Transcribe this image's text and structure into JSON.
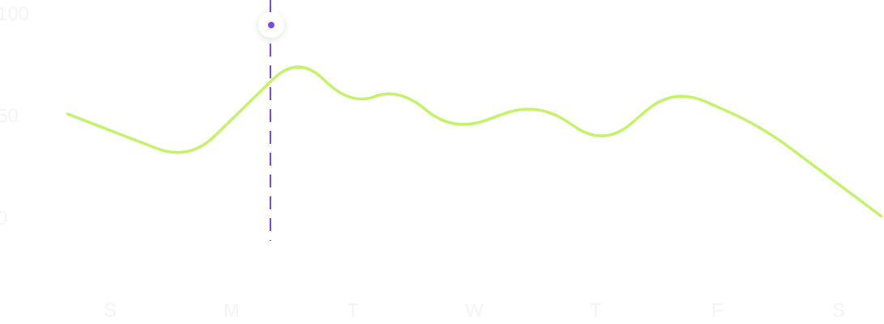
{
  "chart_data": {
    "type": "line",
    "categories": [
      "S",
      "M",
      "T",
      "W",
      "T",
      "F",
      "S"
    ],
    "y_ticks": [
      "100",
      "50",
      "0"
    ],
    "ylim": [
      0,
      100
    ],
    "series": [
      {
        "color": "#c4f26a",
        "x": [
          -0.35,
          0.65,
          1.55,
          1.98,
          2.38,
          2.82,
          3.52,
          4.07,
          4.64,
          5.36,
          6.35
        ],
        "y": [
          51,
          28,
          80,
          55,
          64,
          42,
          57,
          35,
          64,
          45,
          1
        ]
      }
    ],
    "cursor": {
      "x": 1.32,
      "color": "#7b48e8",
      "marker_fill": "#ffffff"
    },
    "grid": false,
    "legend": "none"
  }
}
